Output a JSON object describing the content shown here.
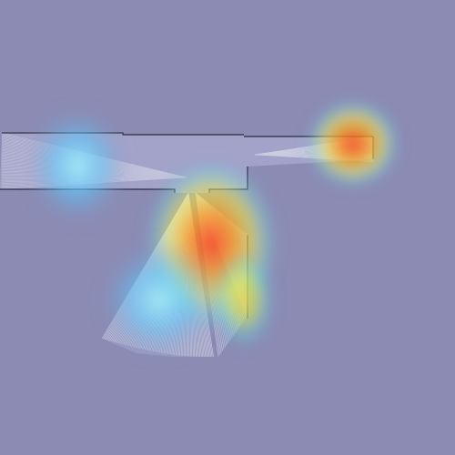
{
  "colors": {
    "background": "#8b8bb4",
    "free_space": "#a7a7cc",
    "wall": "#2a2a3c",
    "ray": "#ffffff",
    "heat_low": "#55ccff",
    "heat_mid": "#ffee44",
    "heat_high": "#ff4422"
  },
  "heatmap": {
    "scale": "blue-cyan-yellow-red",
    "blob_count": 5
  }
}
